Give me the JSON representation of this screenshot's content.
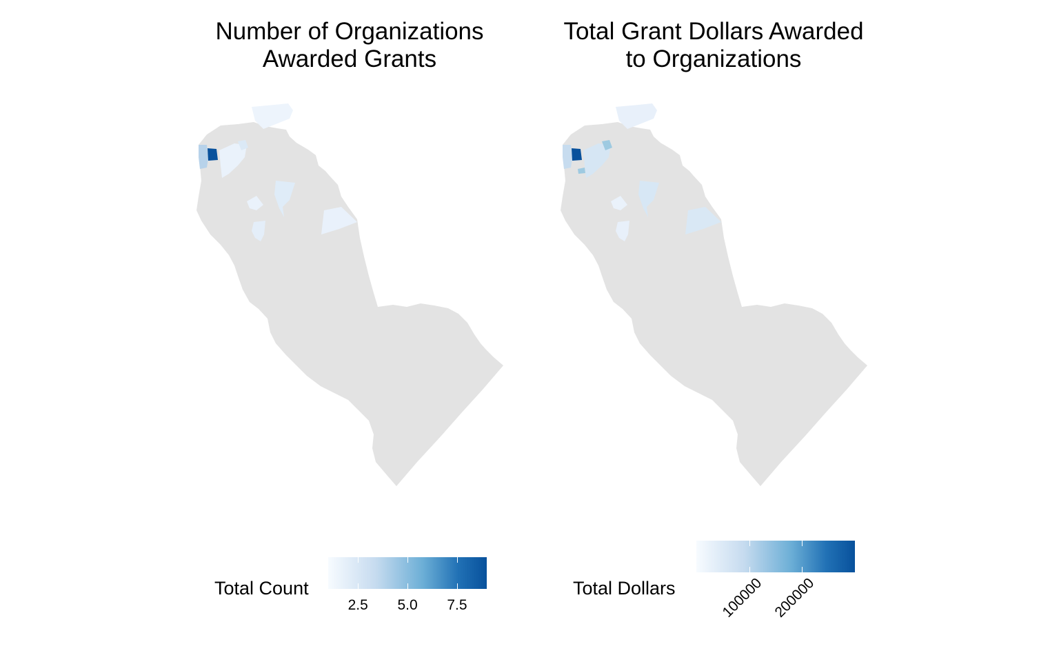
{
  "panels": [
    {
      "title_line1": "Number of Organizations",
      "title_line2": "Awarded Grants",
      "legend": {
        "title": "Total Count",
        "scale_min": 1,
        "scale_max": 9,
        "ticks": [
          "2.5",
          "5.0",
          "7.5"
        ],
        "tick_values": [
          2.5,
          5.0,
          7.5
        ]
      }
    },
    {
      "title_line1": "Total Grant Dollars Awarded",
      "title_line2": "to Organizations",
      "legend": {
        "title": "Total Dollars",
        "scale_min": 0,
        "scale_max": 300000,
        "ticks": [
          "100000",
          "200000"
        ],
        "tick_values": [
          100000,
          200000
        ]
      }
    }
  ],
  "colors": {
    "base_region": "#e3e3e3",
    "palette_low": "#f7fbff",
    "palette_high": "#08519c"
  }
}
